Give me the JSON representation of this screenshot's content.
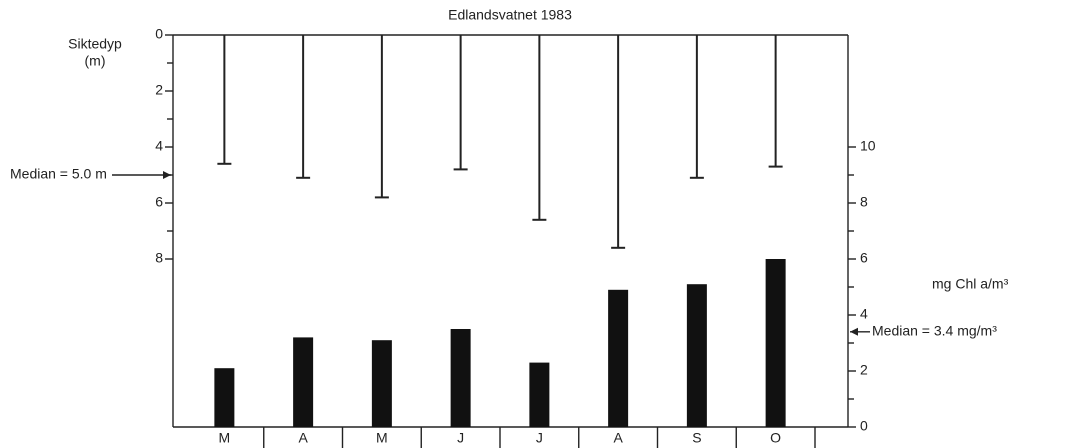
{
  "chart_data": {
    "type": "combo",
    "title": "Edlandsvatnet 1983",
    "categories": [
      "M",
      "A",
      "M",
      "J",
      "J",
      "A",
      "S",
      "O"
    ],
    "series": [
      {
        "type": "stem",
        "axis": "y",
        "color": "#222222",
        "values": [
          4.6,
          5.1,
          5.8,
          4.8,
          6.6,
          7.6,
          5.1,
          4.7
        ]
      },
      {
        "type": "bar",
        "axis": "y2",
        "color": "#111111",
        "values": [
          2.1,
          3.2,
          3.1,
          3.5,
          2.3,
          4.9,
          5.1,
          6.0
        ]
      }
    ],
    "y_label": [
      "Siktedyp",
      "(m)"
    ],
    "y2_label": "mg Chl a/m³",
    "ylim": [
      0,
      14
    ],
    "yticks": [
      0,
      2,
      4,
      6,
      8
    ],
    "yminor": [
      1,
      3,
      5,
      7
    ],
    "y_inverted": true,
    "y2lim": [
      0,
      14
    ],
    "y2ticks": [
      0,
      2,
      4,
      6,
      8,
      10
    ],
    "y2minor": [
      1,
      3,
      5,
      7,
      9
    ],
    "annotations": [
      {
        "text": "Median = 5.0 m",
        "value": 5.0,
        "axis": "y"
      },
      {
        "text": "Median = 3.4 mg/m³",
        "value": 3.4,
        "axis": "y2"
      }
    ]
  }
}
